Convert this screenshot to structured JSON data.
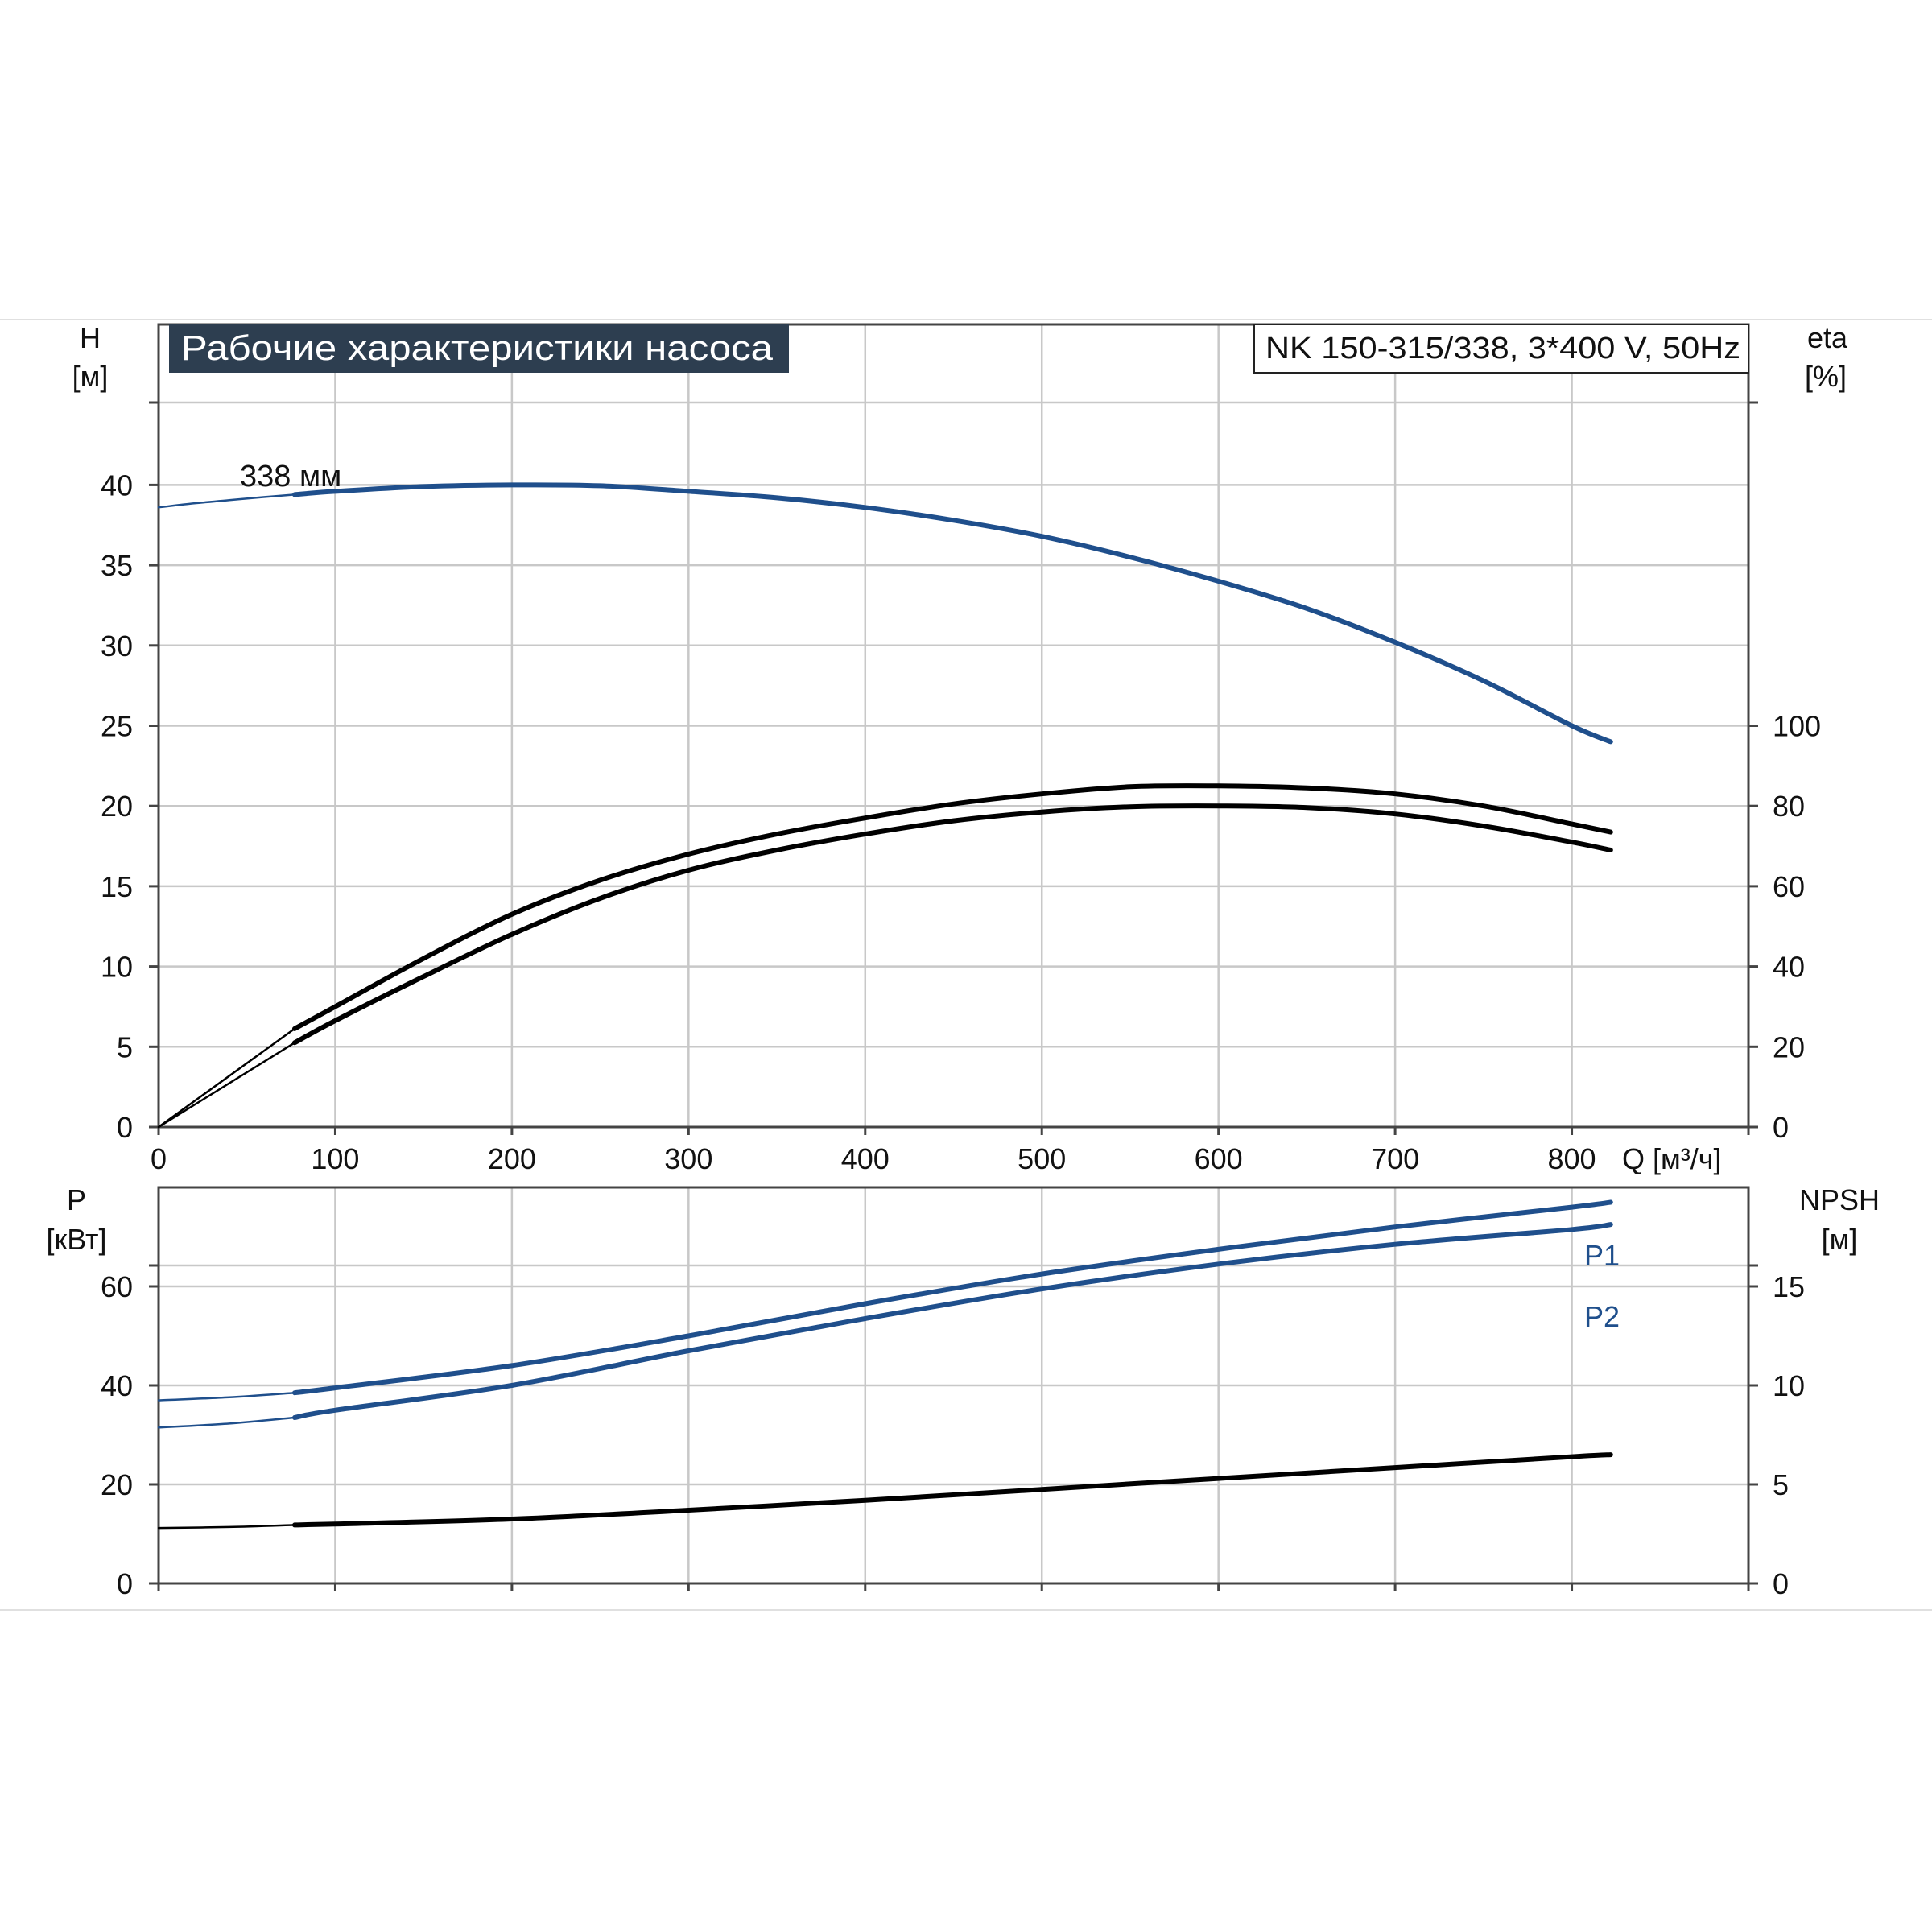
{
  "header": {
    "title": "Рабочие характеристики насоса",
    "model": "NK 150-315/338, 3*400 V, 50Hz"
  },
  "colors": {
    "blue": "#1f4f8c",
    "black": "#000000",
    "grid": "#c8c8c8",
    "title_bg": "#2d3e50",
    "title_fg": "#ffffff"
  },
  "chart_data": [
    {
      "type": "line",
      "name": "upper-chart",
      "x_axis": {
        "label": "Q [м³/ч]",
        "range": [
          0,
          900
        ],
        "ticks": [
          0,
          100,
          200,
          300,
          400,
          500,
          600,
          700,
          800
        ]
      },
      "y_left": {
        "label_line1": "H",
        "label_line2": "[м]",
        "range": [
          0,
          50
        ],
        "ticks": [
          0,
          5,
          10,
          15,
          20,
          25,
          30,
          35,
          40
        ]
      },
      "y_right": {
        "label_line1": "eta",
        "label_line2": "[%]",
        "range": [
          0,
          200
        ],
        "ticks": [
          0,
          20,
          40,
          60,
          80,
          100
        ]
      },
      "annotation": "338 мм",
      "series": [
        {
          "key": "head",
          "axis": "left",
          "color": "#1f4f8c",
          "thin": {
            "x": [
              0,
              20,
              40,
              60,
              77
            ],
            "y": [
              38.6,
              38.85,
              39.05,
              39.25,
              39.4
            ]
          },
          "thick": {
            "x": [
              77,
              100,
              150,
              200,
              250,
              300,
              350,
              400,
              450,
              500,
              550,
              600,
              650,
              700,
              750,
              800,
              822
            ],
            "y": [
              39.4,
              39.6,
              39.9,
              40.0,
              39.95,
              39.6,
              39.2,
              38.6,
              37.8,
              36.8,
              35.5,
              34.0,
              32.3,
              30.2,
              27.8,
              25.0,
              24.0
            ]
          }
        },
        {
          "key": "eta-1",
          "axis": "right",
          "color": "#000000",
          "thin": {
            "x": [
              0,
              77
            ],
            "y": [
              0,
              24.5
            ]
          },
          "thick": {
            "x": [
              77,
              100,
              150,
              200,
              250,
              300,
              350,
              400,
              450,
              500,
              550,
              600,
              650,
              700,
              750,
              800,
              822
            ],
            "y": [
              24.5,
              30.0,
              42.0,
              53.0,
              61.5,
              68.0,
              73.0,
              77.0,
              80.5,
              83.0,
              84.8,
              85.0,
              84.5,
              83.0,
              80.0,
              75.5,
              73.5
            ]
          }
        },
        {
          "key": "eta-2",
          "axis": "right",
          "color": "#000000",
          "thin": {
            "x": [
              0,
              77
            ],
            "y": [
              0,
              21.0
            ]
          },
          "thick": {
            "x": [
              77,
              100,
              150,
              200,
              250,
              300,
              350,
              400,
              450,
              500,
              550,
              600,
              650,
              700,
              750,
              800,
              822
            ],
            "y": [
              21.0,
              26.5,
              37.5,
              48.0,
              57.0,
              64.0,
              69.0,
              73.0,
              76.3,
              78.5,
              79.8,
              80.0,
              79.6,
              78.0,
              75.0,
              71.0,
              69.0
            ]
          }
        }
      ]
    },
    {
      "type": "line",
      "name": "lower-chart",
      "x_axis": {
        "range": [
          0,
          900
        ]
      },
      "y_left": {
        "label_line1": "P",
        "label_line2": "[кВт]",
        "range": [
          0,
          80
        ],
        "ticks": [
          0,
          20,
          40,
          60
        ]
      },
      "y_right": {
        "label_line1": "NPSH",
        "label_line2": "[м]",
        "range": [
          0,
          20
        ],
        "ticks": [
          0,
          5,
          10,
          15
        ]
      },
      "series": [
        {
          "key": "P1",
          "name": "P1",
          "axis": "left",
          "color": "#1f4f8c",
          "thin": {
            "x": [
              0,
              40,
              77
            ],
            "y": [
              37.0,
              37.6,
              38.5
            ]
          },
          "thick": {
            "x": [
              77,
              100,
              200,
              300,
              400,
              500,
              600,
              700,
              800,
              822
            ],
            "y": [
              38.5,
              39.5,
              44.0,
              50.0,
              56.5,
              62.5,
              67.5,
              72.0,
              76.0,
              77.0
            ]
          }
        },
        {
          "key": "P2",
          "name": "P2",
          "axis": "left",
          "color": "#1f4f8c",
          "thin": {
            "x": [
              0,
              40,
              77
            ],
            "y": [
              31.5,
              32.3,
              33.5
            ]
          },
          "thick": {
            "x": [
              77,
              100,
              200,
              300,
              400,
              500,
              600,
              700,
              800,
              822
            ],
            "y": [
              33.5,
              35.0,
              40.0,
              47.0,
              53.5,
              59.5,
              64.5,
              68.5,
              71.5,
              72.5
            ]
          }
        },
        {
          "key": "NPSH",
          "axis": "right",
          "color": "#000000",
          "thin": {
            "x": [
              0,
              40,
              77
            ],
            "y": [
              2.8,
              2.85,
              2.95
            ]
          },
          "thick": {
            "x": [
              77,
              100,
              200,
              300,
              400,
              500,
              600,
              700,
              800,
              822
            ],
            "y": [
              2.95,
              3.0,
              3.25,
              3.7,
              4.2,
              4.75,
              5.3,
              5.85,
              6.4,
              6.5
            ]
          }
        }
      ]
    }
  ]
}
